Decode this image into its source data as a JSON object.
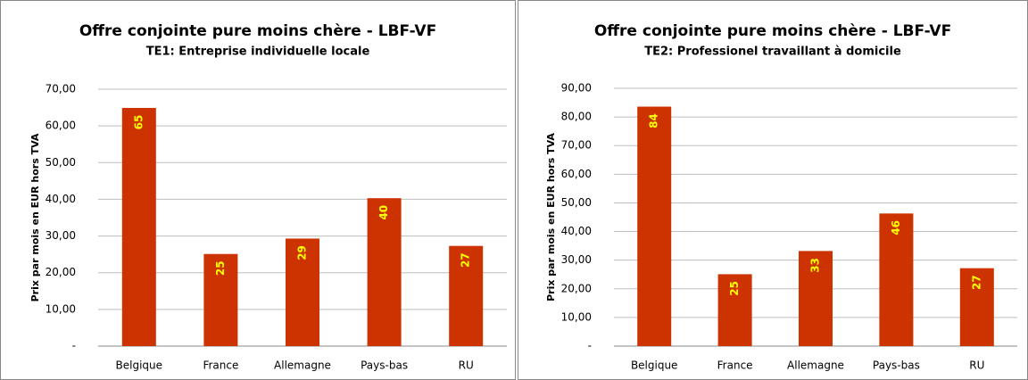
{
  "chart_data": [
    {
      "type": "bar",
      "title": "Offre conjointe pure moins chère - LBF-VF",
      "subtitle": "TE1: Entreprise individuelle locale",
      "y_label": "Prix par mois en EUR hors TVA",
      "categories": [
        "Belgique",
        "France",
        "Allemagne",
        "Pays-bas",
        "RU"
      ],
      "values": [
        64.9,
        25.1,
        29.3,
        40.3,
        27.3
      ],
      "value_labels": [
        "65",
        "25",
        "29",
        "40",
        "27"
      ],
      "color": "#cc3300",
      "label_color": "#ffff00",
      "ylim": [
        0,
        70
      ],
      "yticks": [
        {
          "value": 0,
          "label": "-"
        },
        {
          "value": 10,
          "label": "10,00"
        },
        {
          "value": 20,
          "label": "20,00"
        },
        {
          "value": 30,
          "label": "30,00"
        },
        {
          "value": 40,
          "label": "40,00"
        },
        {
          "value": 50,
          "label": "50,00"
        },
        {
          "value": 60,
          "label": "60,00"
        },
        {
          "value": 70,
          "label": "70,00"
        }
      ],
      "grid": true
    },
    {
      "type": "bar",
      "title": "Offre conjointe pure moins chère - LBF-VF",
      "subtitle": "TE2: Professionel travaillant à domicile",
      "y_label": "Prix par mois en EUR hors TVA",
      "categories": [
        "Belgique",
        "France",
        "Allemagne",
        "Pays-bas",
        "RU"
      ],
      "values": [
        83.6,
        25.1,
        33.2,
        46.3,
        27.2
      ],
      "value_labels": [
        "84",
        "25",
        "33",
        "46",
        "27"
      ],
      "color": "#cc3300",
      "label_color": "#ffff00",
      "ylim": [
        0,
        90
      ],
      "yticks": [
        {
          "value": 0,
          "label": "-"
        },
        {
          "value": 10,
          "label": "10,00"
        },
        {
          "value": 20,
          "label": "20,00"
        },
        {
          "value": 30,
          "label": "30,00"
        },
        {
          "value": 40,
          "label": "40,00"
        },
        {
          "value": 50,
          "label": "50,00"
        },
        {
          "value": 60,
          "label": "60,00"
        },
        {
          "value": 70,
          "label": "70,00"
        },
        {
          "value": 80,
          "label": "80,00"
        },
        {
          "value": 90,
          "label": "90,00"
        }
      ],
      "grid": true
    }
  ]
}
